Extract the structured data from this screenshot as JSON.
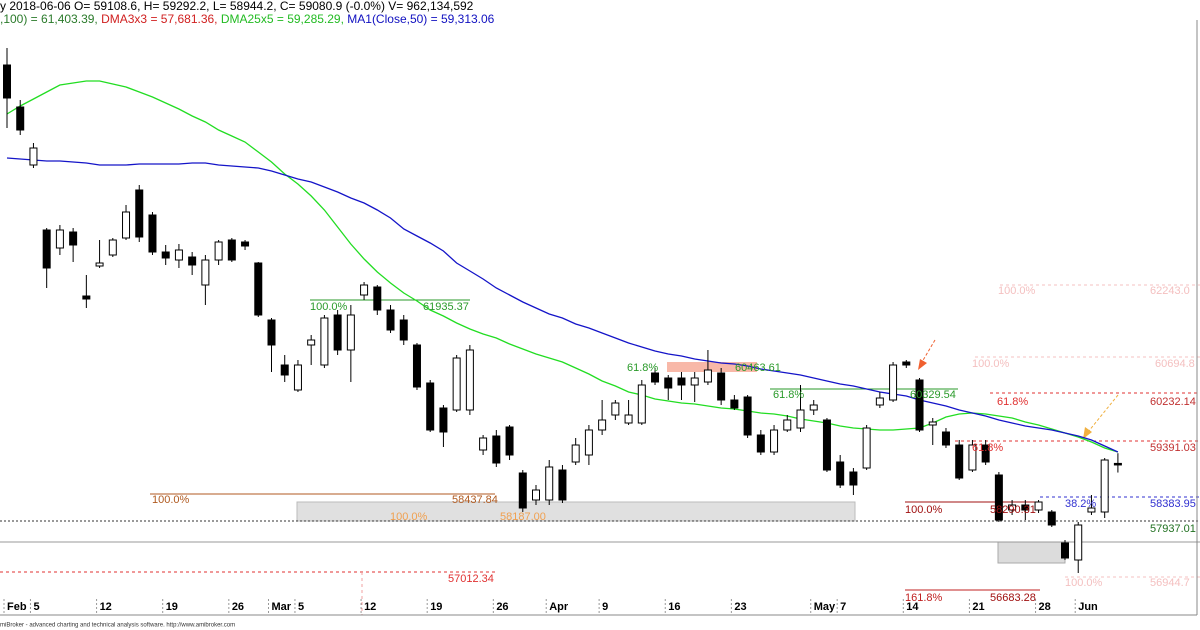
{
  "chart_data": {
    "type": "candlestick",
    "header": [
      [
        {
          "text": "y 2018-06-06 O= 59108.6, H= 59292.2, L= 58944.2, C= 59080.9 (-0.0%) V= 962,134,592",
          "color": "#000000"
        }
      ],
      [
        {
          "text": ",100) = 61,403.39, ",
          "color": "#2a7a2a"
        },
        {
          "text": "DMA3x3 = 57,681.36, ",
          "color": "#d02020"
        },
        {
          "text": "DMA25x5 = 59,285.29, ",
          "color": "#22bb22"
        },
        {
          "text": "MA1(Close,50) = 59,313.06",
          "color": "#1010c0"
        }
      ]
    ],
    "footer": "miBroker - advanced charting and technical analysis software. http://www.amibroker.com",
    "ylim": [
      56380,
      67450
    ],
    "categories": [
      "Feb",
      null,
      "5",
      null,
      null,
      null,
      null,
      "12",
      null,
      null,
      null,
      null,
      "19",
      null,
      null,
      null,
      null,
      "26",
      null,
      null,
      "Mar",
      null,
      "5",
      null,
      null,
      null,
      null,
      "12",
      null,
      null,
      null,
      null,
      "19",
      null,
      null,
      null,
      null,
      "26",
      null,
      null,
      null,
      "Apr",
      null,
      null,
      null,
      "9",
      null,
      null,
      null,
      null,
      "16",
      null,
      null,
      null,
      null,
      "23",
      null,
      null,
      null,
      null,
      null,
      "May",
      null,
      "7",
      null,
      null,
      null,
      null,
      "14",
      null,
      null,
      null,
      null,
      "21",
      null,
      null,
      null,
      null,
      "28",
      null,
      null,
      "Jun",
      null,
      null,
      null
    ],
    "open": [
      66280,
      65524,
      64480,
      63310,
      62986,
      63274,
      62122,
      62662,
      62860,
      63166,
      64030,
      63580,
      62914,
      62770,
      62824,
      62320,
      62770,
      63130,
      63094,
      62716,
      61690,
      60880,
      60430,
      61240,
      60880,
      61780,
      61150,
      62140,
      62284,
      61870,
      61690,
      61240,
      60556,
      60106,
      60070,
      60070,
      59350,
      59602,
      59764,
      58936,
      58450,
      58450,
      58990,
      59134,
      59260,
      59710,
      59980,
      59836,
      59836,
      60736,
      60646,
      60646,
      60520,
      60574,
      60736,
      60250,
      60304,
      59620,
      59314,
      59710,
      59746,
      60070,
      59890,
      59134,
      58954,
      59026,
      60160,
      60250,
      60934,
      60610,
      59800,
      59674,
      59440,
      58990,
      59440,
      58900,
      58270,
      58360,
      58270,
      58234,
      57676,
      57370,
      58234,
      58234,
      59108.6
    ],
    "high": [
      66586,
      65650,
      64876,
      63346,
      63400,
      63346,
      62500,
      63130,
      63166,
      63760,
      64120,
      63634,
      63040,
      63058,
      62914,
      62860,
      63130,
      63166,
      63130,
      62734,
      61726,
      61060,
      60970,
      61420,
      61780,
      61870,
      61960,
      62374,
      62320,
      61960,
      61780,
      61276,
      60610,
      60160,
      61060,
      61240,
      59620,
      59710,
      59800,
      58990,
      58720,
      59170,
      59080,
      59566,
      59800,
      60250,
      60250,
      60250,
      60610,
      60826,
      60700,
      60754,
      60754,
      61150,
      60826,
      60340,
      60340,
      59710,
      59800,
      59980,
      60520,
      60250,
      59926,
      59260,
      59026,
      59800,
      60394,
      60934,
      60970,
      60646,
      59926,
      59746,
      59530,
      59530,
      59530,
      58954,
      58450,
      58450,
      58450,
      58270,
      57730,
      58054,
      58540,
      59206,
      59292.2
    ],
    "low": [
      65146,
      65020,
      64426,
      62266,
      62860,
      62734,
      61906,
      62626,
      62824,
      63130,
      63094,
      62860,
      62680,
      62626,
      62500,
      61960,
      62680,
      62734,
      62950,
      61744,
      60754,
      60574,
      60394,
      60880,
      60826,
      61060,
      60574,
      62050,
      61780,
      61456,
      61240,
      60430,
      59674,
      59404,
      60034,
      59980,
      59260,
      59044,
      59170,
      58234,
      58360,
      58360,
      58396,
      59080,
      59080,
      59620,
      59890,
      59800,
      59800,
      60520,
      60250,
      60250,
      60214,
      60520,
      60160,
      60070,
      59566,
      59260,
      59260,
      59674,
      59674,
      59980,
      58954,
      58666,
      58540,
      58990,
      60106,
      60214,
      60826,
      59674,
      59440,
      59386,
      58810,
      58954,
      59080,
      58054,
      58180,
      58090,
      58216,
      57964,
      57370,
      57136,
      58180,
      58126,
      58944.2
    ],
    "close": [
      65686,
      65110,
      64786,
      62626,
      63310,
      63040,
      62068,
      62716,
      63130,
      63634,
      63184,
      62914,
      62806,
      62950,
      62680,
      62770,
      63094,
      62770,
      63022,
      61780,
      61240,
      60700,
      60880,
      61330,
      61726,
      61150,
      61780,
      62320,
      61870,
      61510,
      61330,
      60484,
      59710,
      59674,
      61006,
      61150,
      59566,
      59116,
      59260,
      58306,
      58630,
      59044,
      58450,
      59440,
      59710,
      59890,
      60196,
      59980,
      60520,
      60574,
      60466,
      60520,
      60646,
      60790,
      60250,
      60106,
      59620,
      59314,
      59710,
      59890,
      60070,
      60160,
      58990,
      58720,
      58720,
      59746,
      60286,
      60880,
      60880,
      59710,
      59854,
      59440,
      58846,
      59440,
      59134,
      58090,
      58360,
      58270,
      58414,
      58000,
      57406,
      58000,
      58306,
      59170,
      59080.9
    ],
    "up_color": "#ffffff",
    "down_color": "#000000",
    "lines": [
      {
        "color": "#22dd22",
        "values": [
          65398,
          65542,
          65668,
          65794,
          65920,
          65956,
          65992,
          65992,
          65938,
          65884,
          65794,
          65704,
          65596,
          65488,
          65362,
          65254,
          65110,
          65002,
          64894,
          64714,
          64534,
          64318,
          64138,
          63922,
          63670,
          63364,
          63058,
          62788,
          62554,
          62356,
          62176,
          62032,
          61870,
          61762,
          61636,
          61528,
          61438,
          61366,
          61258,
          61168,
          61078,
          61006,
          60934,
          60826,
          60718,
          60592,
          60502,
          60394,
          60340,
          60268,
          60232,
          60196,
          60178,
          60142,
          60106,
          60088,
          60052,
          60016,
          59998,
          59962,
          59908,
          59872,
          59836,
          59782,
          59746,
          59728,
          59710,
          59710,
          59728,
          59746,
          59836,
          59944,
          59998,
          60016,
          59998,
          59962,
          59926,
          59854,
          59800,
          59728,
          59656,
          59584,
          59494,
          59386,
          59314
        ]
      },
      {
        "color": "#1414c8",
        "values": [
          64606,
          64588,
          64570,
          64552,
          64552,
          64534,
          64516,
          64480,
          64480,
          64480,
          64498,
          64498,
          64498,
          64498,
          64516,
          64516,
          64480,
          64462,
          64444,
          64426,
          64372,
          64300,
          64228,
          64174,
          64084,
          63994,
          63886,
          63796,
          63670,
          63526,
          63328,
          63202,
          63076,
          62932,
          62716,
          62572,
          62428,
          62266,
          62140,
          62014,
          61906,
          61798,
          61726,
          61618,
          61546,
          61456,
          61366,
          61276,
          61204,
          61132,
          61078,
          61042,
          60988,
          60952,
          60916,
          60898,
          60862,
          60808,
          60772,
          60736,
          60700,
          60646,
          60592,
          60538,
          60502,
          60448,
          60394,
          60358,
          60322,
          60250,
          60196,
          60142,
          60070,
          60016,
          59962,
          59890,
          59836,
          59782,
          59746,
          59710,
          59656,
          59602,
          59530,
          59422,
          59314
        ]
      }
    ],
    "annotations": [
      {
        "text": "100.0%",
        "color": "#b05a20"
      },
      {
        "text": "58437.84",
        "color": "#b05a20"
      },
      {
        "text": "100.0%",
        "color": "#f0a050"
      },
      {
        "text": "58187.00",
        "color": "#f0a050"
      },
      {
        "text": "57012.34",
        "color": "#e03030"
      },
      {
        "text": "100.0%",
        "color": "#2a9a2a"
      },
      {
        "text": "61935.37",
        "color": "#2a9a2a"
      },
      {
        "text": "61.8%",
        "color": "#2a9a2a"
      },
      {
        "text": "60463.61",
        "color": "#2a9a2a"
      },
      {
        "text": "61.8%",
        "color": "#2a9a2a"
      },
      {
        "text": "60329.54",
        "color": "#2a9a2a"
      },
      {
        "text": "100.0%",
        "color": "#f4c0c0"
      },
      {
        "text": "62243.0",
        "color": "#f4c0c0"
      },
      {
        "text": "100.0%",
        "color": "#f4c0c0"
      },
      {
        "text": "60694.8",
        "color": "#f4c0c0"
      },
      {
        "text": "61.8%",
        "color": "#e03030"
      },
      {
        "text": "60232.14",
        "color": "#c03030"
      },
      {
        "text": "61.8%",
        "color": "#e03030"
      },
      {
        "text": "59391.03",
        "color": "#c03030"
      },
      {
        "text": "38.2%",
        "color": "#3030d0"
      },
      {
        "text": "58383.95",
        "color": "#3030d0"
      },
      {
        "text": "100.0%",
        "color": "#a01010"
      },
      {
        "text": "58290.31",
        "color": "#a01010"
      },
      {
        "text": "57937.01",
        "color": "#207020"
      },
      {
        "text": "161.8%",
        "color": "#c02020"
      },
      {
        "text": "56683.28",
        "color": "#a01010"
      },
      {
        "text": "100.0%",
        "color": "#f4c0c0"
      },
      {
        "text": "56944.7",
        "color": "#f4c0c0"
      }
    ]
  }
}
